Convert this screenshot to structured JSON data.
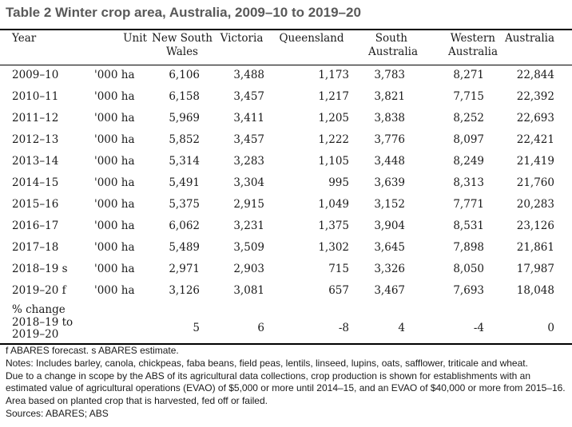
{
  "title": "Table 2 Winter crop area, Australia, 2009–10 to 2019–20",
  "headers": {
    "year": "Year",
    "unit": "Unit",
    "nsw": [
      "New South",
      "Wales"
    ],
    "vic": "Victoria",
    "qld": "Queensland",
    "sa": [
      "South",
      "Australia"
    ],
    "wa": [
      "Western",
      "Australia"
    ],
    "aus": "Australia"
  },
  "rows": [
    {
      "year": "2009–10",
      "unit": "'000 ha",
      "nsw": "6,106",
      "vic": "3,488",
      "qld": "1,173",
      "sa": "3,783",
      "wa": "8,271",
      "aus": "22,844"
    },
    {
      "year": "2010–11",
      "unit": "'000 ha",
      "nsw": "6,158",
      "vic": "3,457",
      "qld": "1,217",
      "sa": "3,821",
      "wa": "7,715",
      "aus": "22,392"
    },
    {
      "year": "2011–12",
      "unit": "'000 ha",
      "nsw": "5,969",
      "vic": "3,411",
      "qld": "1,205",
      "sa": "3,838",
      "wa": "8,252",
      "aus": "22,693"
    },
    {
      "year": "2012–13",
      "unit": "'000 ha",
      "nsw": "5,852",
      "vic": "3,457",
      "qld": "1,222",
      "sa": "3,776",
      "wa": "8,097",
      "aus": "22,421"
    },
    {
      "year": "2013–14",
      "unit": "'000 ha",
      "nsw": "5,314",
      "vic": "3,283",
      "qld": "1,105",
      "sa": "3,448",
      "wa": "8,249",
      "aus": "21,419"
    },
    {
      "year": "2014–15",
      "unit": "'000 ha",
      "nsw": "5,491",
      "vic": "3,304",
      "qld": "995",
      "sa": "3,639",
      "wa": "8,313",
      "aus": "21,760"
    },
    {
      "year": "2015–16",
      "unit": "'000 ha",
      "nsw": "5,375",
      "vic": "2,915",
      "qld": "1,049",
      "sa": "3,152",
      "wa": "7,771",
      "aus": "20,283"
    },
    {
      "year": "2016–17",
      "unit": "'000 ha",
      "nsw": "6,062",
      "vic": "3,231",
      "qld": "1,375",
      "sa": "3,904",
      "wa": "8,531",
      "aus": "23,126"
    },
    {
      "year": "2017–18",
      "unit": "'000 ha",
      "nsw": "5,489",
      "vic": "3,509",
      "qld": "1,302",
      "sa": "3,645",
      "wa": "7,898",
      "aus": "21,861"
    },
    {
      "year": "2018–19 s",
      "unit": "'000 ha",
      "nsw": "2,971",
      "vic": "2,903",
      "qld": "715",
      "sa": "3,326",
      "wa": "8,050",
      "aus": "17,987"
    },
    {
      "year": "2019–20 f",
      "unit": "'000 ha",
      "nsw": "3,126",
      "vic": "3,081",
      "qld": "657",
      "sa": "3,467",
      "wa": "7,693",
      "aus": "18,048"
    }
  ],
  "change_row": {
    "label": [
      "% change",
      "2018–19 to",
      "2019–20"
    ],
    "unit": "",
    "nsw": "5",
    "vic": "6",
    "qld": "-8",
    "sa": "4",
    "wa": "-4",
    "aus": "0"
  },
  "footnotes": [
    "f ABARES forecast. s ABARES estimate.",
    "Notes: Includes barley, canola, chickpeas, faba beans, field peas, lentils, linseed, lupins, oats, safflower, triticale and wheat.",
    "Due to a change in scope by the ABS of its agricultural data collections, crop production is shown for establishments with an estimated value of agricultural operations (EVAO) of $5,000 or more until 2014–15, and an EVAO of $40,000 or more from 2015–16. Area based on planted crop that is harvested, fed off or failed.",
    "Sources: ABARES; ABS"
  ]
}
